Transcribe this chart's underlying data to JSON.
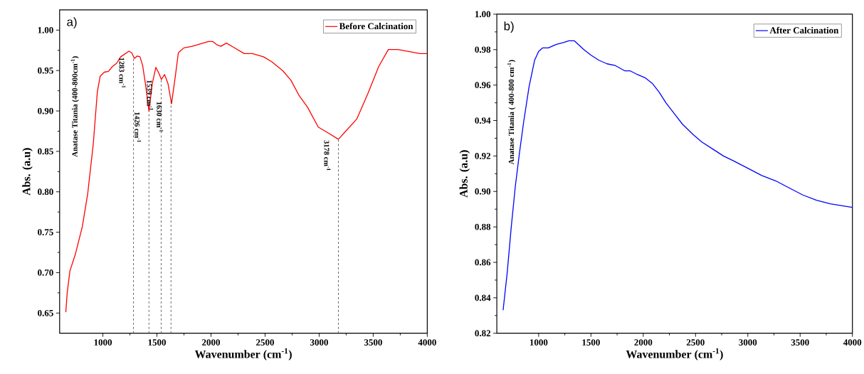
{
  "chart_data": [
    {
      "type": "line",
      "title": "a)",
      "xlabel": "Wavenumber (cm$^{-1}$)",
      "ylabel": "Abs. (a.u)",
      "legend": "top right",
      "xlim": [
        600,
        4000
      ],
      "ylim": [
        0.625,
        1.025
      ],
      "xticks": [
        1000,
        1500,
        2000,
        2500,
        3000,
        3500,
        4000
      ],
      "yticks": [
        {
          "value": 0.65,
          "label": "0.65"
        },
        {
          "value": 0.7,
          "label": "0.70"
        },
        {
          "value": 0.75,
          "label": "0.75"
        },
        {
          "value": 0.8,
          "label": "0.80"
        },
        {
          "value": 0.85,
          "label": "0.85"
        },
        {
          "value": 0.9,
          "label": "0.90"
        },
        {
          "value": 0.95,
          "label": "0.95"
        },
        {
          "value": 1.0,
          "label": "1.00"
        }
      ],
      "series": [
        {
          "name": "Before Calcination",
          "color": "#ff0000",
          "x": [
            657,
            670,
            695,
            746,
            810,
            860,
            911,
            949,
            975,
            1013,
            1051,
            1089,
            1127,
            1165,
            1241,
            1266,
            1292,
            1317,
            1343,
            1368,
            1393,
            1426,
            1457,
            1490,
            1520,
            1541,
            1571,
            1602,
            1635,
            1668,
            1698,
            1749,
            1825,
            1926,
            1977,
            2015,
            2053,
            2091,
            2142,
            2206,
            2307,
            2383,
            2485,
            2561,
            2662,
            2739,
            2815,
            2891,
            2992,
            3081,
            3178,
            3246,
            3348,
            3449,
            3551,
            3640,
            3728,
            3855,
            3931,
            4000
          ],
          "values": [
            0.651,
            0.675,
            0.702,
            0.723,
            0.757,
            0.798,
            0.859,
            0.924,
            0.943,
            0.948,
            0.949,
            0.955,
            0.959,
            0.967,
            0.974,
            0.972,
            0.965,
            0.968,
            0.967,
            0.956,
            0.934,
            0.9,
            0.934,
            0.954,
            0.946,
            0.939,
            0.945,
            0.934,
            0.909,
            0.941,
            0.972,
            0.978,
            0.98,
            0.984,
            0.986,
            0.986,
            0.982,
            0.98,
            0.984,
            0.979,
            0.971,
            0.971,
            0.967,
            0.961,
            0.95,
            0.938,
            0.919,
            0.905,
            0.88,
            0.873,
            0.865,
            0.875,
            0.89,
            0.921,
            0.955,
            0.976,
            0.976,
            0.973,
            0.971,
            0.971
          ]
        }
      ],
      "annotations": [
        "Anatase Titania (400-800cm$^{-1}$)"
      ],
      "ref_lines": [
        {
          "axis": "x",
          "value": 1283,
          "label": "1283 cm$^{-1}$",
          "line_style": "dashed",
          "color": "#404040"
        },
        {
          "axis": "x",
          "value": 1426,
          "label": "1426 cm$^{-1}$",
          "line_style": "dashed",
          "color": "#404040"
        },
        {
          "axis": "x",
          "value": 1539,
          "label": "1539 cm$^{-1}$",
          "line_style": "dashed",
          "color": "#404040"
        },
        {
          "axis": "x",
          "value": 1630,
          "label": "1630 cm$^{-1}$",
          "line_style": "dashed",
          "color": "#404040"
        },
        {
          "axis": "x",
          "value": 3178,
          "label": "3178 cm$^{-1}$",
          "line_style": "dashed",
          "color": "#404040"
        }
      ]
    },
    {
      "type": "line",
      "title": "b)",
      "xlabel": "Wavenumber (cm$^{-1}$)",
      "ylabel": "Abs. (a.u)",
      "legend": "top right",
      "xlim": [
        600,
        4000
      ],
      "ylim": [
        0.82,
        1.0
      ],
      "xticks": [
        1000,
        1500,
        2000,
        2500,
        3000,
        3500,
        4000
      ],
      "yticks": [
        {
          "value": 0.82,
          "label": "0.82"
        },
        {
          "value": 0.84,
          "label": "0.84"
        },
        {
          "value": 0.86,
          "label": "0.86"
        },
        {
          "value": 0.88,
          "label": "0.88"
        },
        {
          "value": 0.9,
          "label": "0.90"
        },
        {
          "value": 0.92,
          "label": "0.92"
        },
        {
          "value": 0.94,
          "label": "0.94"
        },
        {
          "value": 0.96,
          "label": "0.96"
        },
        {
          "value": 0.98,
          "label": "0.98"
        },
        {
          "value": 1.0,
          "label": "1.00"
        }
      ],
      "series": [
        {
          "name": "After Calcination",
          "color": "#0000ff",
          "x": [
            660,
            699,
            738,
            777,
            817,
            856,
            908,
            961,
            1000,
            1039,
            1092,
            1170,
            1236,
            1288,
            1340,
            1432,
            1497,
            1576,
            1654,
            1733,
            1825,
            1877,
            1942,
            2021,
            2086,
            2152,
            2217,
            2296,
            2374,
            2479,
            2558,
            2662,
            2767,
            2872,
            3003,
            3134,
            3265,
            3395,
            3526,
            3657,
            3788,
            3997
          ],
          "values": [
            0.833,
            0.854,
            0.88,
            0.903,
            0.922,
            0.939,
            0.959,
            0.974,
            0.979,
            0.981,
            0.981,
            0.983,
            0.984,
            0.985,
            0.985,
            0.98,
            0.977,
            0.974,
            0.972,
            0.971,
            0.968,
            0.968,
            0.966,
            0.964,
            0.961,
            0.956,
            0.95,
            0.944,
            0.938,
            0.932,
            0.928,
            0.924,
            0.92,
            0.917,
            0.913,
            0.909,
            0.906,
            0.902,
            0.898,
            0.895,
            0.893,
            0.891
          ]
        }
      ],
      "annotations": [
        "Anatase Titania ( 400-800 cm$^{-1}$)"
      ]
    }
  ]
}
